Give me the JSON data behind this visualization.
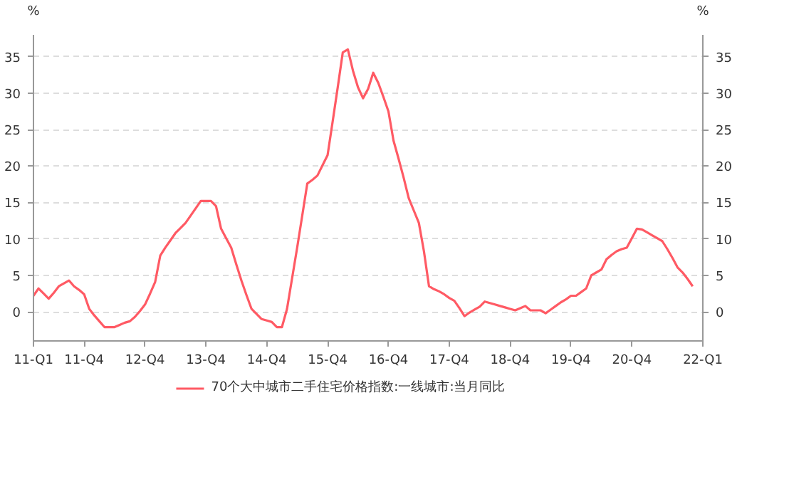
{
  "chart_data": {
    "type": "line",
    "ylabel": "%",
    "y2label": "%",
    "categories": [
      "11-Q1",
      null,
      null,
      null,
      null,
      null,
      null,
      null,
      null,
      null,
      "11-Q4",
      null,
      null,
      null,
      null,
      null,
      null,
      null,
      null,
      null,
      null,
      null,
      "12-Q4",
      null,
      null,
      null,
      null,
      null,
      null,
      null,
      null,
      null,
      null,
      null,
      "13-Q4",
      null,
      null,
      null,
      null,
      null,
      null,
      null,
      null,
      null,
      null,
      null,
      "14-Q4",
      null,
      null,
      null,
      null,
      null,
      null,
      null,
      null,
      null,
      null,
      null,
      "15-Q4",
      null,
      null,
      null,
      null,
      null,
      null,
      null,
      null,
      null,
      null,
      null,
      "16-Q4",
      null,
      null,
      null,
      null,
      null,
      null,
      null,
      null,
      null,
      null,
      null,
      "17-Q4",
      null,
      null,
      null,
      null,
      null,
      null,
      null,
      null,
      null,
      null,
      null,
      "18-Q4",
      null,
      null,
      null,
      null,
      null,
      null,
      null,
      null,
      null,
      null,
      null,
      "19-Q4",
      null,
      null,
      null,
      null,
      null,
      null,
      null,
      null,
      null,
      null,
      null,
      "20-Q4",
      null,
      null,
      null,
      null,
      null,
      null,
      null,
      null,
      null,
      null,
      null,
      null,
      null,
      "22-Q1"
    ],
    "series": [
      {
        "name": "70个大中城市二手住宅价格指数:一线城市:当月同比",
        "color": "#ff5a64",
        "values": [
          2.2,
          3.2,
          2.5,
          1.8,
          2.6,
          3.5,
          3.9,
          4.3,
          3.5,
          3.0,
          2.4,
          0.4,
          -0.5,
          -1.3,
          -2.1,
          -2.1,
          -2.1,
          -1.8,
          -1.5,
          -1.3,
          -0.7,
          0.1,
          1.0,
          2.5,
          4.1,
          7.7,
          8.8,
          9.8,
          10.8,
          11.5,
          12.2,
          13.2,
          14.2,
          15.2,
          15.2,
          15.2,
          14.5,
          11.4,
          10.1,
          8.8,
          6.5,
          4.3,
          2.3,
          0.4,
          -0.3,
          -1.0,
          -1.2,
          -1.4,
          -2.1,
          -2.1,
          0.4,
          4.6,
          8.8,
          13.2,
          17.6,
          18.1,
          18.7,
          20.1,
          21.5,
          26.1,
          30.8,
          35.6,
          36.0,
          33.1,
          30.8,
          29.3,
          30.6,
          32.8,
          31.4,
          29.5,
          27.5,
          23.5,
          21.0,
          18.4,
          15.6,
          13.9,
          12.2,
          8.3,
          3.5,
          3.1,
          2.8,
          2.4,
          1.9,
          1.5,
          0.5,
          -0.6,
          -0.1,
          0.3,
          0.7,
          1.4,
          1.2,
          1.0,
          0.8,
          0.6,
          0.4,
          0.2,
          0.5,
          0.8,
          0.2,
          0.2,
          0.2,
          -0.2,
          0.3,
          0.8,
          1.3,
          1.7,
          2.2,
          2.2,
          2.7,
          3.2,
          5.0,
          5.4,
          5.8,
          7.2,
          7.8,
          8.3,
          8.6,
          8.8,
          10.1,
          11.4,
          11.3,
          10.9,
          10.5,
          10.1,
          9.7,
          8.6,
          7.4,
          6.1,
          5.4,
          4.5,
          3.5,
          null,
          null
        ]
      }
    ],
    "ylim": [
      -4,
      38
    ],
    "yticks": [
      0,
      5,
      10,
      15,
      20,
      25,
      30,
      35
    ],
    "y2lim": [
      -4,
      38
    ],
    "y2ticks": [
      0,
      5,
      10,
      15,
      20,
      25,
      30,
      35
    ],
    "grid": "y",
    "legend": "bottom",
    "line_style": "solid",
    "marker": "none"
  }
}
